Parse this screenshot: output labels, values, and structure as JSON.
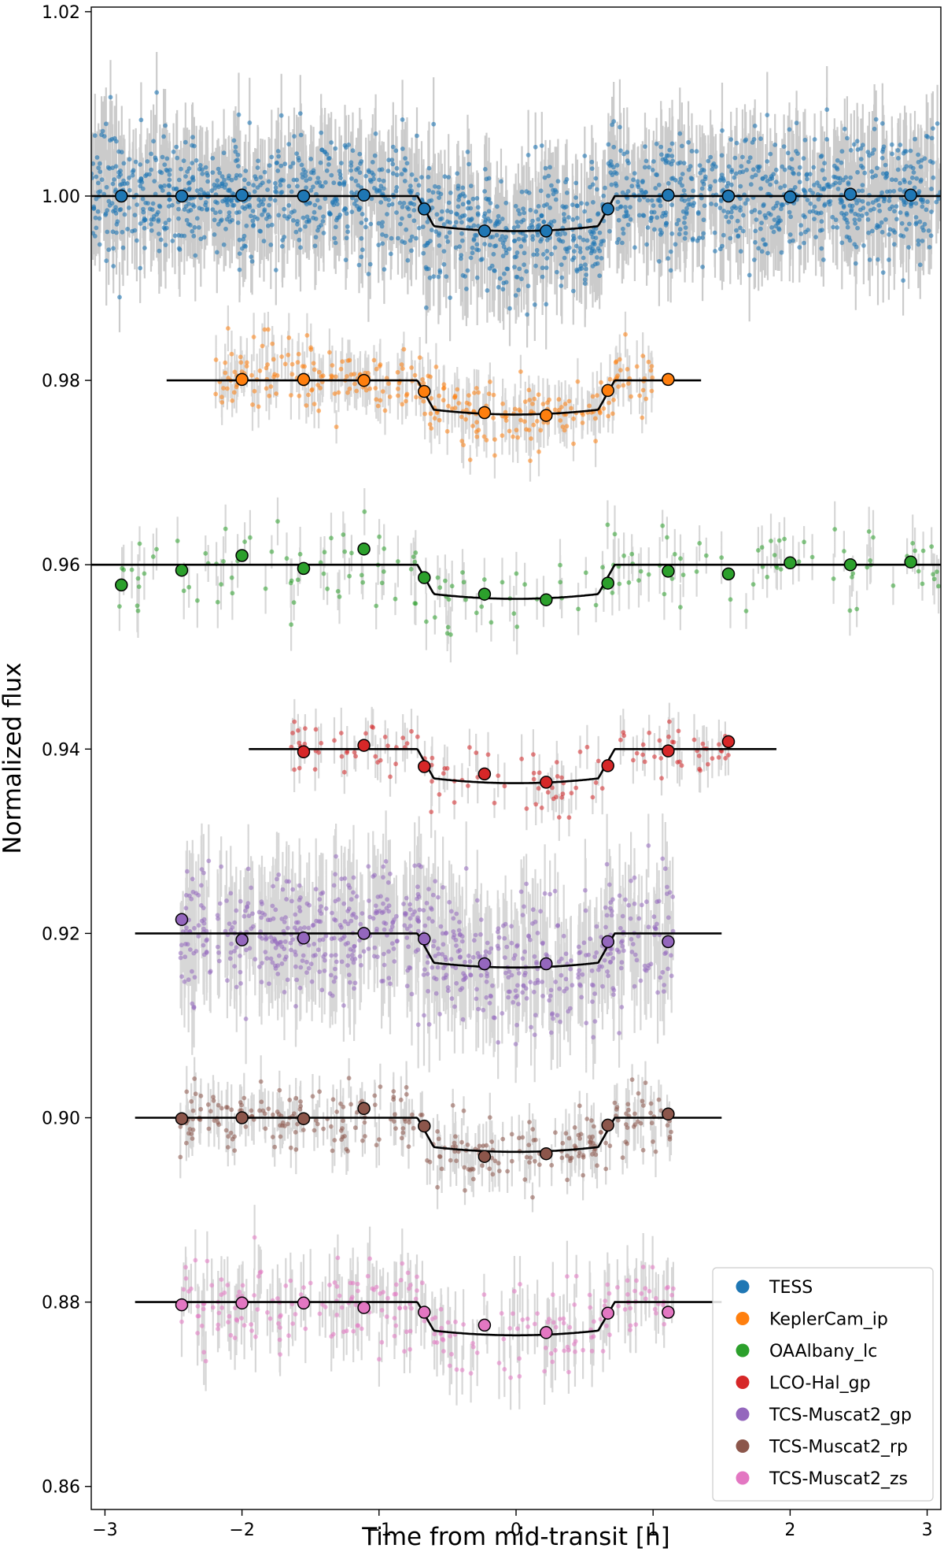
{
  "chart_data": {
    "type": "scatter",
    "title": "",
    "xlabel": "Time from mid-transit [h]",
    "ylabel": "Normalized flux",
    "xlim": [
      -3.1,
      3.1
    ],
    "ylim": [
      0.8575,
      1.0205
    ],
    "xticks": [
      -3,
      -2,
      -1,
      0,
      1,
      2,
      3
    ],
    "xtick_labels": [
      "−3",
      "−2",
      "−1",
      "0",
      "1",
      "2",
      "3"
    ],
    "yticks": [
      0.86,
      0.88,
      0.9,
      0.92,
      0.94,
      0.96,
      0.98,
      1.0,
      1.02
    ],
    "ytick_labels": [
      "0.86",
      "0.88",
      "0.90",
      "0.92",
      "0.94",
      "0.96",
      "0.98",
      "1.00",
      "1.02"
    ],
    "grid": false,
    "legend_position": "lower-right",
    "transit_model": {
      "t1": -0.72,
      "t2": -0.6,
      "t3": 0.6,
      "t4": 0.72
    },
    "series": [
      {
        "name": "TESS",
        "color": "#1f77b4",
        "offset": 1.0,
        "depth": 0.0038,
        "raw_xrange": [
          -3.1,
          3.1
        ],
        "raw_count": 1800,
        "raw_noise": 0.0033,
        "raw_err": 0.004,
        "model_xrange": [
          -3.1,
          3.1
        ],
        "binned": [
          [
            -2.88,
            1.0
          ],
          [
            -2.44,
            1.0
          ],
          [
            -2.0,
            1.0001
          ],
          [
            -1.55,
            1.0
          ],
          [
            -1.11,
            1.0001
          ],
          [
            -0.67,
            0.9986
          ],
          [
            -0.23,
            0.9962
          ],
          [
            0.22,
            0.9962
          ],
          [
            0.67,
            0.9986
          ],
          [
            1.11,
            1.0001
          ],
          [
            1.55,
            1.0
          ],
          [
            2.0,
            0.9999
          ],
          [
            2.44,
            1.0002
          ],
          [
            2.88,
            1.0001
          ]
        ]
      },
      {
        "name": "KeplerCam_ip",
        "color": "#ff7f0e",
        "offset": 0.98,
        "depth": 0.0037,
        "raw_xrange": [
          -2.2,
          1.0
        ],
        "raw_count": 320,
        "raw_noise": 0.0019,
        "raw_err": 0.0022,
        "model_xrange": [
          -2.55,
          1.35
        ],
        "binned": [
          [
            -2.0,
            0.9801
          ],
          [
            -1.55,
            0.9801
          ],
          [
            -1.11,
            0.98
          ],
          [
            -0.67,
            0.9788
          ],
          [
            -0.23,
            0.9765
          ],
          [
            0.22,
            0.9762
          ],
          [
            0.67,
            0.9789
          ],
          [
            1.11,
            0.9801
          ]
        ]
      },
      {
        "name": "OAAlbany_lc",
        "color": "#2ca02c",
        "offset": 0.96,
        "depth": 0.0037,
        "raw_xrange": [
          -2.9,
          3.1
        ],
        "raw_count": 170,
        "raw_noise": 0.0023,
        "raw_err": 0.0024,
        "model_xrange": [
          -3.1,
          3.1
        ],
        "binned": [
          [
            -2.88,
            0.9578
          ],
          [
            -2.44,
            0.9594
          ],
          [
            -2.0,
            0.961
          ],
          [
            -1.55,
            0.9596
          ],
          [
            -1.11,
            0.9617
          ],
          [
            -0.67,
            0.9586
          ],
          [
            -0.23,
            0.9568
          ],
          [
            0.22,
            0.9562
          ],
          [
            0.67,
            0.958
          ],
          [
            1.11,
            0.9593
          ],
          [
            1.55,
            0.959
          ],
          [
            2.0,
            0.9602
          ],
          [
            2.44,
            0.96
          ],
          [
            2.88,
            0.9603
          ]
        ]
      },
      {
        "name": "LCO-Hal_gp",
        "color": "#d62728",
        "offset": 0.94,
        "depth": 0.0037,
        "raw_xrange": [
          -1.65,
          1.6
        ],
        "raw_count": 130,
        "raw_noise": 0.0016,
        "raw_err": 0.0022,
        "model_xrange": [
          -1.95,
          1.9
        ],
        "binned": [
          [
            -1.55,
            0.9397
          ],
          [
            -1.11,
            0.9404
          ],
          [
            -0.67,
            0.9381
          ],
          [
            -0.23,
            0.9373
          ],
          [
            0.22,
            0.9364
          ],
          [
            0.67,
            0.9382
          ],
          [
            1.11,
            0.9398
          ],
          [
            1.55,
            0.9408
          ]
        ]
      },
      {
        "name": "TCS-Muscat2_gp",
        "color": "#9467bd",
        "offset": 0.92,
        "depth": 0.0037,
        "raw_xrange": [
          -2.45,
          1.15
        ],
        "raw_count": 750,
        "raw_noise": 0.0035,
        "raw_err": 0.0045,
        "model_xrange": [
          -2.78,
          1.5
        ],
        "binned": [
          [
            -2.44,
            0.9215
          ],
          [
            -2.0,
            0.9193
          ],
          [
            -1.55,
            0.9195
          ],
          [
            -1.11,
            0.92
          ],
          [
            -0.67,
            0.9194
          ],
          [
            -0.23,
            0.9167
          ],
          [
            0.22,
            0.9167
          ],
          [
            0.67,
            0.9191
          ],
          [
            1.11,
            0.9191
          ]
        ]
      },
      {
        "name": "TCS-Muscat2_rp",
        "color": "#8c564b",
        "offset": 0.9,
        "depth": 0.0037,
        "raw_xrange": [
          -2.45,
          1.15
        ],
        "raw_count": 300,
        "raw_noise": 0.0017,
        "raw_err": 0.0022,
        "model_xrange": [
          -2.78,
          1.5
        ],
        "binned": [
          [
            -2.44,
            0.8999
          ],
          [
            -2.0,
            0.9
          ],
          [
            -1.55,
            0.8999
          ],
          [
            -1.11,
            0.901
          ],
          [
            -0.67,
            0.8991
          ],
          [
            -0.23,
            0.8958
          ],
          [
            0.22,
            0.8961
          ],
          [
            0.67,
            0.8992
          ],
          [
            1.11,
            0.9004
          ]
        ]
      },
      {
        "name": "TCS-Muscat2_zs",
        "color": "#e377c2",
        "offset": 0.88,
        "depth": 0.0036,
        "raw_xrange": [
          -2.45,
          1.15
        ],
        "raw_count": 260,
        "raw_noise": 0.0025,
        "raw_err": 0.003,
        "model_xrange": [
          -2.78,
          1.5
        ],
        "binned": [
          [
            -2.44,
            0.8797
          ],
          [
            -2.0,
            0.8799
          ],
          [
            -1.55,
            0.8799
          ],
          [
            -1.11,
            0.8794
          ],
          [
            -0.67,
            0.8789
          ],
          [
            -0.23,
            0.8775
          ],
          [
            0.22,
            0.8767
          ],
          [
            0.67,
            0.8788
          ],
          [
            1.11,
            0.8789
          ]
        ]
      }
    ]
  }
}
